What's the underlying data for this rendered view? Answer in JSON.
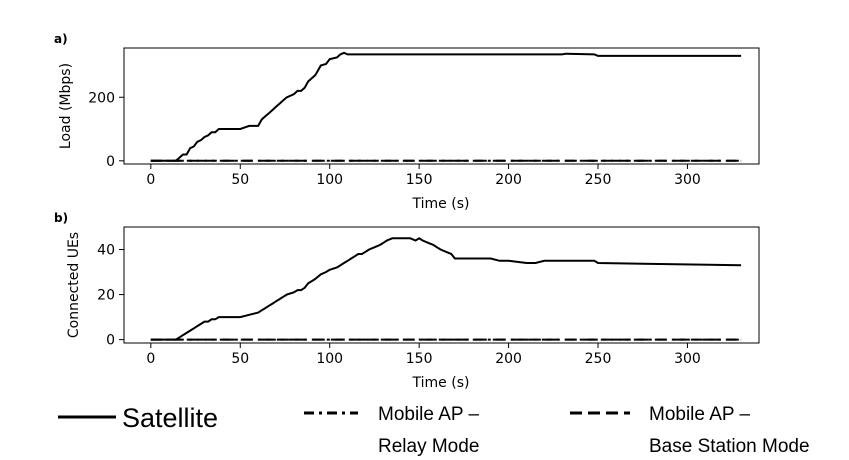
{
  "chart_data": [
    {
      "panel": "a)",
      "type": "line",
      "xlabel": "Time (s)",
      "ylabel": "Load (Mbps)",
      "xlim": [
        -15,
        340
      ],
      "ylim": [
        -10,
        355
      ],
      "xticks": [
        0,
        50,
        100,
        150,
        200,
        250,
        300
      ],
      "yticks": [
        0,
        200
      ],
      "series": [
        {
          "name": "Satellite",
          "style": "solid",
          "x": [
            0,
            14,
            16,
            18,
            20,
            22,
            24,
            26,
            28,
            30,
            32,
            34,
            36,
            38,
            40,
            45,
            50,
            55,
            60,
            62,
            64,
            66,
            68,
            70,
            72,
            74,
            76,
            80,
            82,
            84,
            86,
            88,
            90,
            92,
            95,
            98,
            100,
            104,
            106,
            108,
            110,
            150,
            200,
            230,
            232,
            248,
            250,
            330
          ],
          "y": [
            0,
            0,
            10,
            20,
            20,
            40,
            45,
            60,
            65,
            75,
            80,
            90,
            90,
            100,
            100,
            100,
            100,
            110,
            110,
            130,
            140,
            150,
            160,
            170,
            180,
            190,
            200,
            210,
            220,
            220,
            230,
            250,
            260,
            270,
            300,
            305,
            320,
            325,
            335,
            340,
            335,
            335,
            335,
            335,
            337,
            335,
            330,
            330
          ]
        },
        {
          "name": "Mobile AP –\nRelay Mode",
          "style": "dashdot",
          "x": [
            0,
            330
          ],
          "y": [
            0,
            0
          ]
        },
        {
          "name": "Mobile AP –\nBase Station Mode",
          "style": "dashed",
          "x": [
            0,
            330
          ],
          "y": [
            0,
            0
          ]
        }
      ]
    },
    {
      "panel": "b)",
      "type": "line",
      "xlabel": "Time (s)",
      "ylabel": "Connected UEs",
      "xlim": [
        -15,
        340
      ],
      "ylim": [
        -1.5,
        50
      ],
      "xticks": [
        0,
        50,
        100,
        150,
        200,
        250,
        300
      ],
      "yticks": [
        0,
        20,
        40
      ],
      "series": [
        {
          "name": "Satellite",
          "style": "solid",
          "x": [
            0,
            14,
            16,
            18,
            20,
            22,
            24,
            26,
            28,
            30,
            32,
            34,
            36,
            38,
            40,
            45,
            50,
            55,
            60,
            62,
            64,
            66,
            68,
            70,
            72,
            74,
            76,
            80,
            82,
            84,
            86,
            88,
            90,
            92,
            95,
            98,
            100,
            104,
            106,
            108,
            110,
            112,
            114,
            116,
            118,
            120,
            122,
            125,
            128,
            130,
            132,
            135,
            140,
            145,
            148,
            150,
            152,
            155,
            158,
            160,
            162,
            165,
            168,
            170,
            180,
            190,
            195,
            200,
            210,
            215,
            220,
            225,
            230,
            240,
            248,
            250,
            330
          ],
          "y": [
            0,
            0,
            1,
            2,
            3,
            4,
            5,
            6,
            7,
            8,
            8,
            9,
            9,
            10,
            10,
            10,
            10,
            11,
            12,
            13,
            14,
            15,
            16,
            17,
            18,
            19,
            20,
            21,
            22,
            22,
            23,
            25,
            26,
            27,
            29,
            30,
            31,
            32,
            33,
            34,
            35,
            36,
            37,
            38,
            38,
            39,
            40,
            41,
            42,
            43,
            44,
            45,
            45,
            45,
            44,
            45,
            44,
            43,
            42,
            41,
            40,
            39,
            38,
            36,
            36,
            36,
            35,
            35,
            34,
            34,
            35,
            35,
            35,
            35,
            35,
            34,
            33
          ]
        },
        {
          "name": "Mobile AP –\nRelay Mode",
          "style": "dashdot",
          "x": [
            0,
            330
          ],
          "y": [
            0,
            0
          ]
        },
        {
          "name": "Mobile AP –\nBase Station Mode",
          "style": "dashed",
          "x": [
            0,
            330
          ],
          "y": [
            0,
            0
          ]
        }
      ]
    }
  ],
  "legend": {
    "items": [
      {
        "style": "solid",
        "line1": "Satellite",
        "line2": ""
      },
      {
        "style": "dashdot",
        "line1": "Mobile AP –",
        "line2": "Relay Mode"
      },
      {
        "style": "dashed",
        "line1": "Mobile AP –",
        "line2": "Base Station Mode"
      }
    ]
  },
  "colors": {
    "line": "#000000",
    "background": "#ffffff"
  }
}
